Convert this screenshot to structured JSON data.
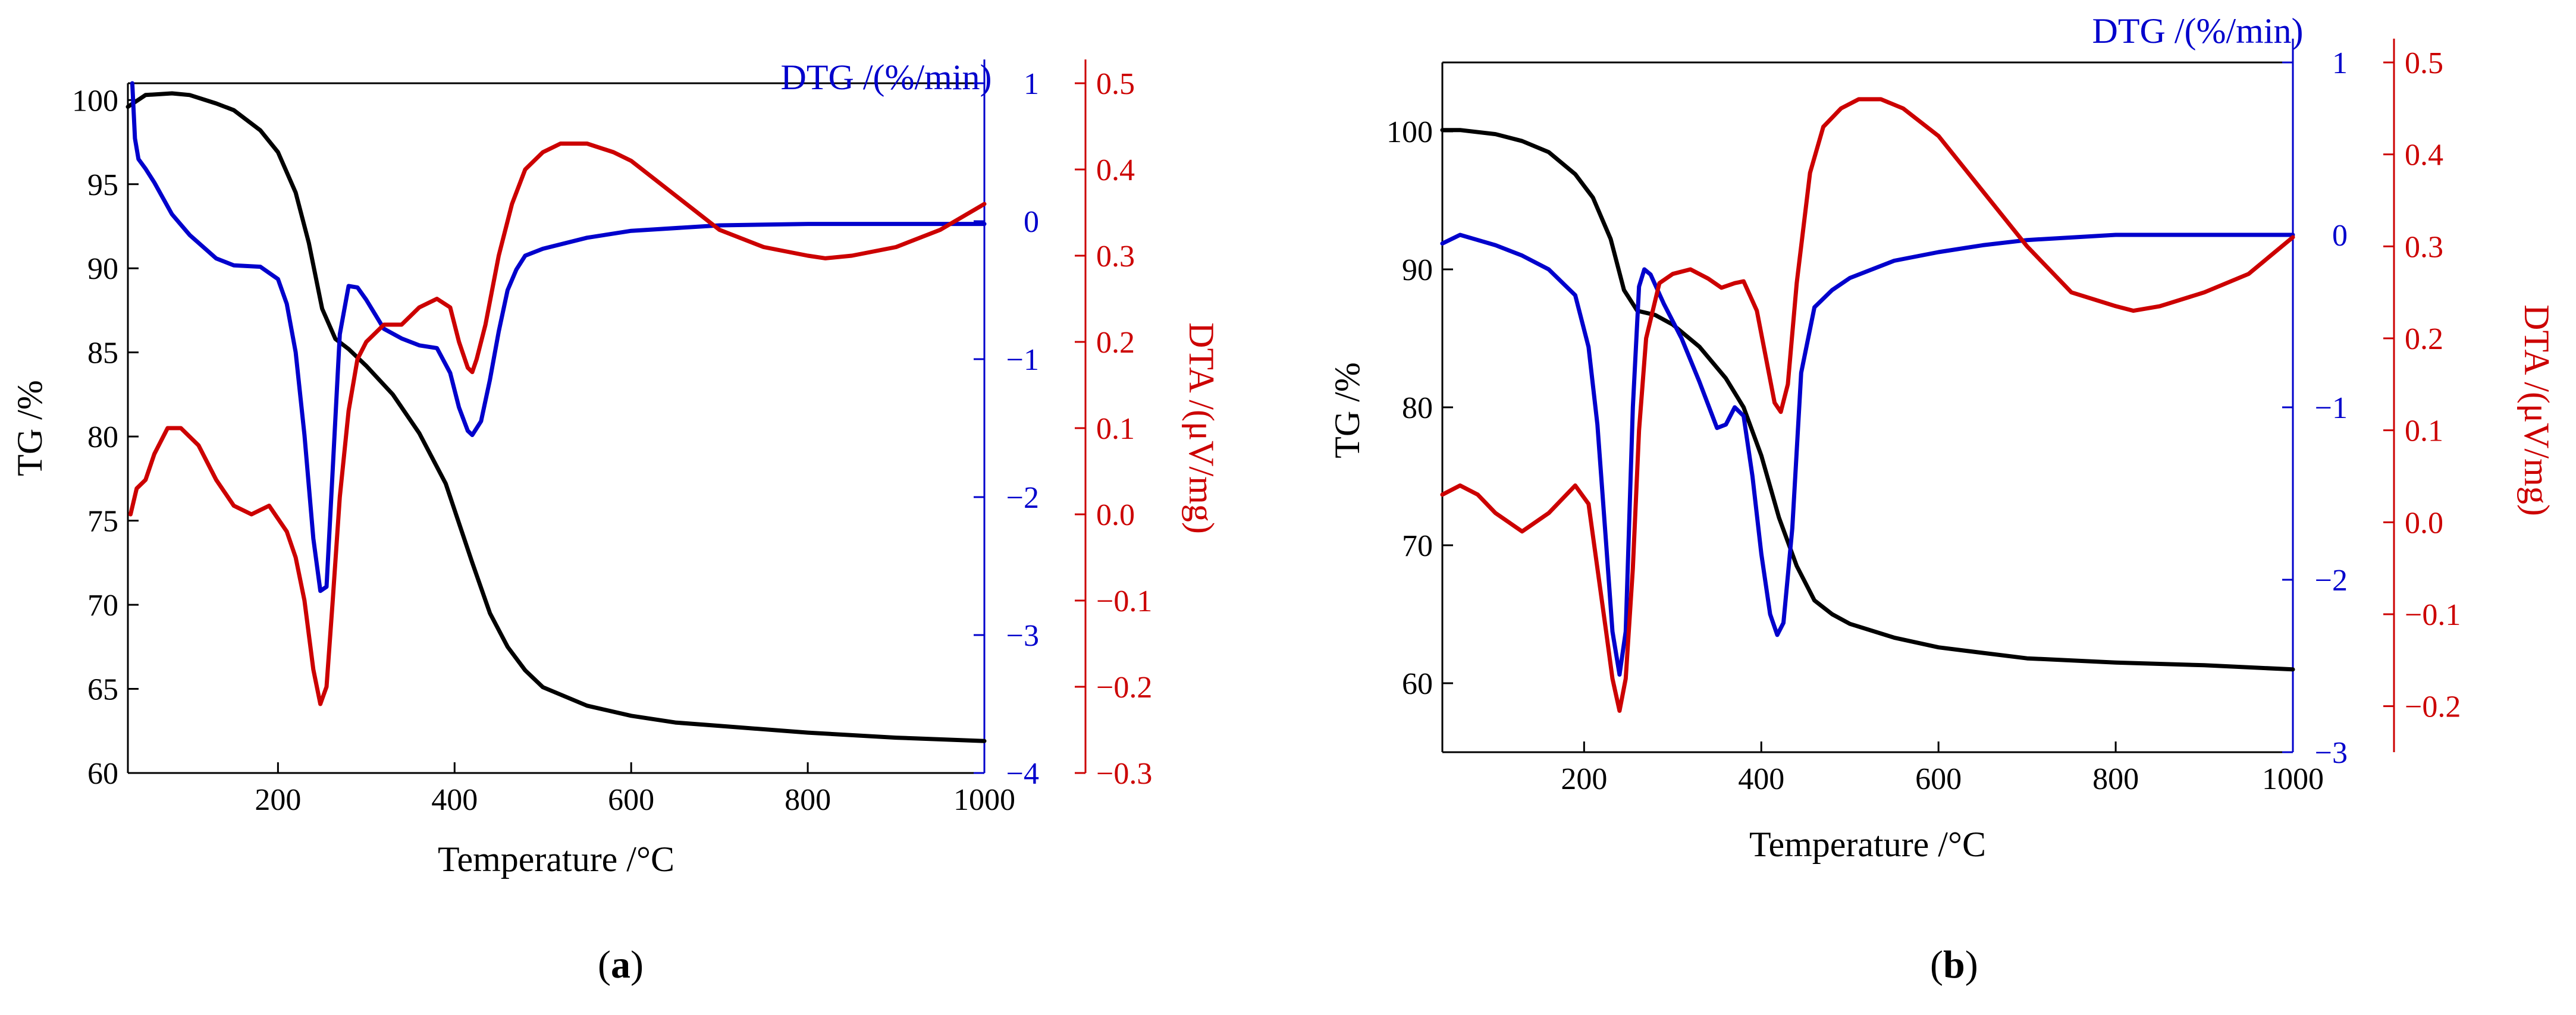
{
  "figure": {
    "panels": [
      {
        "label_open": "(",
        "label_letter": "a",
        "label_close": ")"
      },
      {
        "label_open": "(",
        "label_letter": "b",
        "label_close": ")"
      }
    ]
  },
  "colors": {
    "tg": "#000000",
    "dtg": "#0000cc",
    "dta": "#cc0000"
  },
  "chart_data": [
    {
      "type": "line",
      "panel": "a",
      "title": "",
      "xlabel": "Temperature /°C",
      "xlim": [
        30,
        1000
      ],
      "xticks": [
        200,
        400,
        600,
        800,
        1000
      ],
      "axes": {
        "tg": {
          "label": "TG /%",
          "lim": [
            60,
            101
          ],
          "ticks": [
            60,
            65,
            70,
            75,
            80,
            85,
            90,
            95,
            100
          ],
          "tick_labels": [
            "60",
            "65",
            "70",
            "75",
            "80",
            "85",
            "90",
            "95",
            "100"
          ]
        },
        "dtg": {
          "label": "DTG /(%/min)",
          "lim": [
            -4,
            1
          ],
          "ticks": [
            -4,
            -3,
            -2,
            -1,
            0,
            1
          ],
          "tick_labels": [
            "−4",
            "−3",
            "−2",
            "−1",
            "0",
            "1"
          ]
        },
        "dta": {
          "label": "DTA /(μV/mg)",
          "lim": [
            -0.3,
            0.5
          ],
          "ticks": [
            -0.3,
            -0.2,
            -0.1,
            0.0,
            0.1,
            0.2,
            0.3,
            0.4,
            0.5
          ],
          "tick_labels": [
            "−0.3",
            "−0.2",
            "−0.1",
            "0.0",
            "0.1",
            "0.2",
            "0.3",
            "0.4",
            "0.5"
          ]
        }
      },
      "series": [
        {
          "name": "TG",
          "axis": "tg",
          "color": "#000000",
          "x": [
            30,
            50,
            80,
            100,
            130,
            150,
            180,
            200,
            220,
            235,
            250,
            265,
            280,
            300,
            330,
            360,
            390,
            420,
            440,
            460,
            480,
            500,
            550,
            600,
            650,
            700,
            800,
            900,
            1000
          ],
          "y": [
            99.6,
            100.3,
            100.4,
            100.3,
            99.8,
            99.4,
            98.2,
            96.9,
            94.5,
            91.5,
            87.6,
            85.8,
            85.2,
            84.2,
            82.5,
            80.2,
            77.2,
            72.5,
            69.5,
            67.5,
            66.1,
            65.1,
            64.0,
            63.4,
            63.0,
            62.8,
            62.4,
            62.1,
            61.9
          ]
        },
        {
          "name": "DTG",
          "axis": "dtg",
          "color": "#0000cc",
          "x": [
            35,
            38,
            42,
            50,
            60,
            80,
            100,
            130,
            150,
            180,
            200,
            210,
            220,
            230,
            240,
            248,
            255,
            262,
            270,
            280,
            290,
            300,
            320,
            340,
            360,
            380,
            395,
            405,
            415,
            420,
            430,
            440,
            450,
            460,
            470,
            480,
            500,
            550,
            600,
            700,
            800,
            900,
            1000
          ],
          "y": [
            1.0,
            0.6,
            0.45,
            0.38,
            0.28,
            0.05,
            -0.1,
            -0.27,
            -0.32,
            -0.33,
            -0.42,
            -0.6,
            -0.95,
            -1.55,
            -2.3,
            -2.68,
            -2.65,
            -1.8,
            -0.82,
            -0.47,
            -0.48,
            -0.57,
            -0.78,
            -0.85,
            -0.9,
            -0.92,
            -1.1,
            -1.35,
            -1.52,
            -1.55,
            -1.45,
            -1.15,
            -0.8,
            -0.5,
            -0.35,
            -0.25,
            -0.2,
            -0.12,
            -0.07,
            -0.03,
            -0.02,
            -0.02,
            -0.02
          ]
        },
        {
          "name": "DTA",
          "axis": "dta",
          "color": "#cc0000",
          "x": [
            33,
            40,
            50,
            60,
            75,
            90,
            110,
            130,
            150,
            170,
            190,
            210,
            220,
            230,
            240,
            248,
            255,
            262,
            270,
            280,
            290,
            300,
            320,
            340,
            360,
            380,
            395,
            405,
            415,
            420,
            425,
            435,
            450,
            465,
            480,
            500,
            520,
            550,
            580,
            600,
            650,
            700,
            750,
            800,
            820,
            850,
            900,
            950,
            1000
          ],
          "y": [
            0.0,
            0.03,
            0.04,
            0.07,
            0.1,
            0.1,
            0.08,
            0.04,
            0.01,
            0.0,
            0.01,
            -0.02,
            -0.05,
            -0.1,
            -0.18,
            -0.22,
            -0.2,
            -0.1,
            0.02,
            0.12,
            0.18,
            0.2,
            0.22,
            0.22,
            0.24,
            0.25,
            0.24,
            0.2,
            0.17,
            0.165,
            0.18,
            0.22,
            0.3,
            0.36,
            0.4,
            0.42,
            0.43,
            0.43,
            0.42,
            0.41,
            0.37,
            0.33,
            0.31,
            0.3,
            0.297,
            0.3,
            0.31,
            0.33,
            0.36
          ]
        }
      ]
    },
    {
      "type": "line",
      "panel": "b",
      "title": "",
      "xlabel": "Temperature /°C",
      "xlim": [
        40,
        1000
      ],
      "xticks": [
        200,
        400,
        600,
        800,
        1000
      ],
      "axes": {
        "tg": {
          "label": "TG /%",
          "lim": [
            55,
            105
          ],
          "ticks": [
            60,
            70,
            80,
            90,
            100
          ],
          "tick_labels": [
            "60",
            "70",
            "80",
            "90",
            "100"
          ]
        },
        "dtg": {
          "label": "DTG /(%/min)",
          "lim": [
            -3,
            1
          ],
          "ticks": [
            -3,
            -2,
            -1,
            0,
            1
          ],
          "tick_labels": [
            "−3",
            "−2",
            "−1",
            "0",
            "1"
          ]
        },
        "dta": {
          "label": "DTA /(μV/mg)",
          "lim": [
            -0.25,
            0.5
          ],
          "ticks": [
            -0.2,
            -0.1,
            0.0,
            0.1,
            0.2,
            0.3,
            0.4,
            0.5
          ],
          "tick_labels": [
            "−0.2",
            "−0.1",
            "0.0",
            "0.1",
            "0.2",
            "0.3",
            "0.4",
            "0.5"
          ]
        }
      },
      "series": [
        {
          "name": "TG",
          "axis": "tg",
          "color": "#000000",
          "x": [
            40,
            60,
            100,
            130,
            160,
            190,
            210,
            230,
            245,
            260,
            280,
            300,
            330,
            360,
            380,
            400,
            420,
            440,
            460,
            480,
            500,
            550,
            600,
            650,
            700,
            800,
            900,
            1000
          ],
          "y": [
            100.1,
            100.1,
            99.8,
            99.3,
            98.5,
            96.9,
            95.2,
            92.2,
            88.5,
            87.0,
            86.7,
            86.0,
            84.4,
            82.1,
            80.0,
            76.5,
            72.0,
            68.5,
            66.0,
            65.0,
            64.3,
            63.3,
            62.6,
            62.2,
            61.8,
            61.5,
            61.3,
            61.0
          ]
        },
        {
          "name": "DTG",
          "axis": "dtg",
          "color": "#0000cc",
          "x": [
            40,
            60,
            80,
            100,
            130,
            160,
            190,
            205,
            215,
            225,
            232,
            240,
            247,
            255,
            262,
            268,
            275,
            290,
            310,
            330,
            350,
            360,
            370,
            380,
            390,
            400,
            410,
            418,
            425,
            435,
            445,
            460,
            480,
            500,
            550,
            600,
            650,
            700,
            800,
            900,
            1000
          ],
          "y": [
            -0.05,
            0.0,
            -0.03,
            -0.06,
            -0.12,
            -0.2,
            -0.35,
            -0.65,
            -1.1,
            -1.8,
            -2.3,
            -2.55,
            -2.3,
            -1.0,
            -0.3,
            -0.2,
            -0.23,
            -0.4,
            -0.6,
            -0.85,
            -1.12,
            -1.1,
            -1.0,
            -1.05,
            -1.4,
            -1.85,
            -2.2,
            -2.32,
            -2.25,
            -1.7,
            -0.8,
            -0.42,
            -0.32,
            -0.25,
            -0.15,
            -0.1,
            -0.06,
            -0.03,
            0.0,
            0.0,
            0.0
          ]
        },
        {
          "name": "DTA",
          "axis": "dta",
          "color": "#cc0000",
          "x": [
            40,
            60,
            80,
            100,
            130,
            160,
            190,
            205,
            215,
            225,
            232,
            240,
            247,
            255,
            262,
            270,
            285,
            300,
            320,
            340,
            355,
            370,
            380,
            395,
            405,
            415,
            422,
            430,
            440,
            455,
            470,
            490,
            510,
            535,
            560,
            600,
            650,
            700,
            750,
            800,
            820,
            850,
            900,
            950,
            1000
          ],
          "y": [
            0.03,
            0.04,
            0.03,
            0.01,
            -0.01,
            0.01,
            0.04,
            0.02,
            -0.05,
            -0.12,
            -0.17,
            -0.205,
            -0.17,
            -0.05,
            0.1,
            0.2,
            0.26,
            0.27,
            0.275,
            0.265,
            0.255,
            0.26,
            0.262,
            0.23,
            0.18,
            0.13,
            0.12,
            0.15,
            0.26,
            0.38,
            0.43,
            0.45,
            0.46,
            0.46,
            0.45,
            0.42,
            0.36,
            0.3,
            0.25,
            0.235,
            0.23,
            0.235,
            0.25,
            0.27,
            0.31
          ]
        }
      ]
    }
  ]
}
